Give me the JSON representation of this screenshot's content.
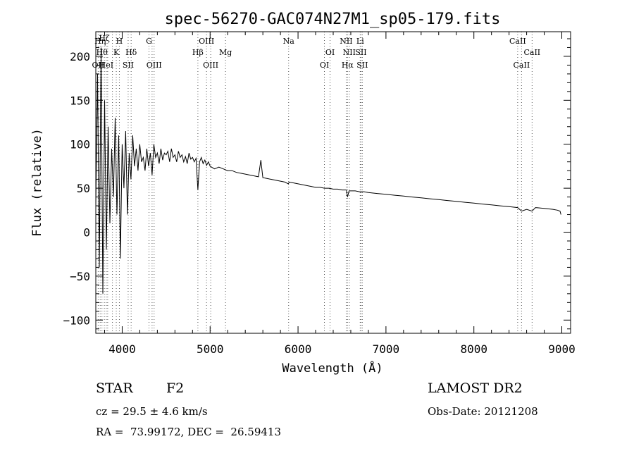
{
  "chart_data": {
    "type": "line",
    "title": "spec-56270-GAC074N27M1_sp05-179.fits",
    "xlabel": "Wavelength (Å)",
    "ylabel": "Flux (relative)",
    "xlim": [
      3700,
      9100
    ],
    "ylim": [
      -115,
      228
    ],
    "xticks": [
      4000,
      5000,
      6000,
      7000,
      8000,
      9000
    ],
    "yticks": [
      -100,
      -50,
      0,
      50,
      100,
      150,
      200
    ],
    "xtick_labels": [
      "4000",
      "5000",
      "6000",
      "7000",
      "8000",
      "9000"
    ],
    "ytick_labels": [
      "−100",
      "−50",
      "0",
      "50",
      "100",
      "150",
      "200"
    ],
    "grid": false,
    "series": [
      {
        "x": [
          3700,
          3720,
          3740,
          3760,
          3780,
          3800,
          3820,
          3840,
          3860,
          3880,
          3900,
          3920,
          3940,
          3960,
          3980,
          4000,
          4020,
          4040,
          4060,
          4080,
          4100,
          4120,
          4140,
          4160,
          4180,
          4200,
          4220,
          4240,
          4260,
          4280,
          4300,
          4320,
          4340,
          4360,
          4380,
          4400,
          4420,
          4440,
          4460,
          4480,
          4500,
          4520,
          4540,
          4560,
          4580,
          4600,
          4620,
          4640,
          4660,
          4680,
          4700,
          4720,
          4740,
          4760,
          4780,
          4800,
          4820,
          4840,
          4861,
          4880,
          4900,
          4920,
          4940,
          4960,
          4980,
          5000,
          5050,
          5100,
          5150,
          5200,
          5250,
          5300,
          5350,
          5400,
          5450,
          5500,
          5550,
          5577,
          5600,
          5650,
          5700,
          5750,
          5800,
          5850,
          5890,
          5900,
          5950,
          6000,
          6050,
          6100,
          6150,
          6200,
          6250,
          6300,
          6350,
          6400,
          6450,
          6500,
          6550,
          6563,
          6580,
          6650,
          6700,
          6750,
          6800,
          6900,
          7000,
          7100,
          7200,
          7300,
          7400,
          7500,
          7600,
          7700,
          7800,
          7900,
          8000,
          8100,
          8200,
          8300,
          8400,
          8498,
          8542,
          8600,
          8662,
          8700,
          8800,
          8900,
          8950,
          8980,
          8990
        ],
        "y": [
          30,
          180,
          -40,
          210,
          -70,
          150,
          -20,
          120,
          10,
          95,
          40,
          130,
          20,
          110,
          -30,
          100,
          50,
          115,
          20,
          90,
          60,
          110,
          75,
          95,
          70,
          100,
          80,
          85,
          70,
          95,
          75,
          90,
          65,
          100,
          85,
          90,
          78,
          95,
          82,
          90,
          88,
          92,
          80,
          95,
          85,
          88,
          80,
          92,
          85,
          88,
          80,
          86,
          78,
          90,
          83,
          85,
          80,
          84,
          48,
          80,
          85,
          78,
          82,
          76,
          80,
          75,
          72,
          74,
          72,
          70,
          70,
          68,
          67,
          66,
          65,
          64,
          63,
          82,
          62,
          61,
          60,
          59,
          58,
          57,
          55,
          57,
          56,
          55,
          54,
          53,
          52,
          51,
          51,
          50,
          50,
          49,
          49,
          48,
          48,
          40,
          47,
          47,
          46,
          46,
          45,
          44,
          43,
          42,
          41,
          40,
          39,
          38,
          37,
          36,
          35,
          34,
          33,
          32,
          31,
          30,
          29,
          28,
          24,
          26,
          24,
          28,
          27,
          26,
          25,
          24,
          20
        ]
      }
    ],
    "lines": [
      {
        "wl": 3727,
        "label": "OII",
        "row": 3
      },
      {
        "wl": 3750,
        "label": "Hη",
        "row": 1
      },
      {
        "wl": 3770,
        "label": "Hθ",
        "row": 2
      },
      {
        "wl": 3797,
        "label": "Hζ",
        "row": 0
      },
      {
        "wl": 3819,
        "label": "HeI",
        "row": 3
      },
      {
        "wl": 3835,
        "label": "",
        "row": 0
      },
      {
        "wl": 3889,
        "label": "",
        "row": 0
      },
      {
        "wl": 3933,
        "label": "K",
        "row": 2
      },
      {
        "wl": 3968,
        "label": "H",
        "row": 1
      },
      {
        "wl": 4068,
        "label": "SII",
        "row": 3
      },
      {
        "wl": 4102,
        "label": "Hδ",
        "row": 2
      },
      {
        "wl": 4305,
        "label": "G",
        "row": 1
      },
      {
        "wl": 4340,
        "label": "",
        "row": 0
      },
      {
        "wl": 4363,
        "label": "OIII",
        "row": 3
      },
      {
        "wl": 4861,
        "label": "Hβ",
        "row": 2
      },
      {
        "wl": 4959,
        "label": "OIII",
        "row": 1
      },
      {
        "wl": 5007,
        "label": "OIII",
        "row": 3
      },
      {
        "wl": 5175,
        "label": "Mg",
        "row": 2
      },
      {
        "wl": 5893,
        "label": "Na",
        "row": 1
      },
      {
        "wl": 6300,
        "label": "OI",
        "row": 3
      },
      {
        "wl": 6364,
        "label": "OI",
        "row": 2
      },
      {
        "wl": 6548,
        "label": "NII",
        "row": 1
      },
      {
        "wl": 6563,
        "label": "Hα",
        "row": 3
      },
      {
        "wl": 6583,
        "label": "NII",
        "row": 2
      },
      {
        "wl": 6707,
        "label": "Li",
        "row": 1
      },
      {
        "wl": 6716,
        "label": "SII",
        "row": 2
      },
      {
        "wl": 6731,
        "label": "SII",
        "row": 3
      },
      {
        "wl": 8498,
        "label": "CaII",
        "row": 1
      },
      {
        "wl": 8542,
        "label": "CaII",
        "row": 3
      },
      {
        "wl": 8662,
        "label": "CaII",
        "row": 2
      }
    ]
  },
  "info": {
    "class": "STAR",
    "subclass": "F2",
    "survey": "LAMOST DR2",
    "cz": "cz = 29.5 ± 4.6 km/s",
    "obs_date": "Obs-Date: 20121208",
    "radec": "RA =  73.99172, DEC =  26.59413"
  }
}
